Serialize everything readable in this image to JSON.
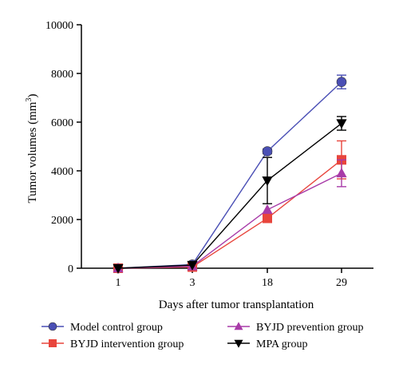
{
  "chart_data": {
    "type": "line",
    "xlabel": "Days after tumor transplantation",
    "ylabel_main": "Tumor volumes (mm",
    "ylabel_sup": "3",
    "ylabel_close": ")",
    "categories": [
      "1",
      "3",
      "18",
      "29"
    ],
    "ylim": [
      0,
      10000
    ],
    "yticks": [
      0,
      2000,
      4000,
      6000,
      8000,
      10000
    ],
    "grid": false,
    "legend_position": "bottom",
    "series": [
      {
        "name": "Model control group",
        "color": "#4a4fb5",
        "marker": "circle",
        "values": [
          0,
          150,
          4800,
          7650
        ],
        "errors": [
          0,
          0,
          100,
          280
        ]
      },
      {
        "name": "BYJD intervention group",
        "color": "#e8453c",
        "marker": "square",
        "values": [
          0,
          50,
          2050,
          4450
        ],
        "errors": [
          0,
          0,
          0,
          780
        ]
      },
      {
        "name": "BYJD prevention group",
        "color": "#a83ba8",
        "marker": "triangle-up",
        "values": [
          0,
          80,
          2400,
          3900
        ],
        "errors": [
          0,
          0,
          0,
          550
        ]
      },
      {
        "name": "MPA group",
        "color": "#000000",
        "marker": "triangle-down",
        "values": [
          0,
          130,
          3600,
          5950
        ],
        "errors": [
          0,
          0,
          950,
          280
        ]
      }
    ]
  }
}
